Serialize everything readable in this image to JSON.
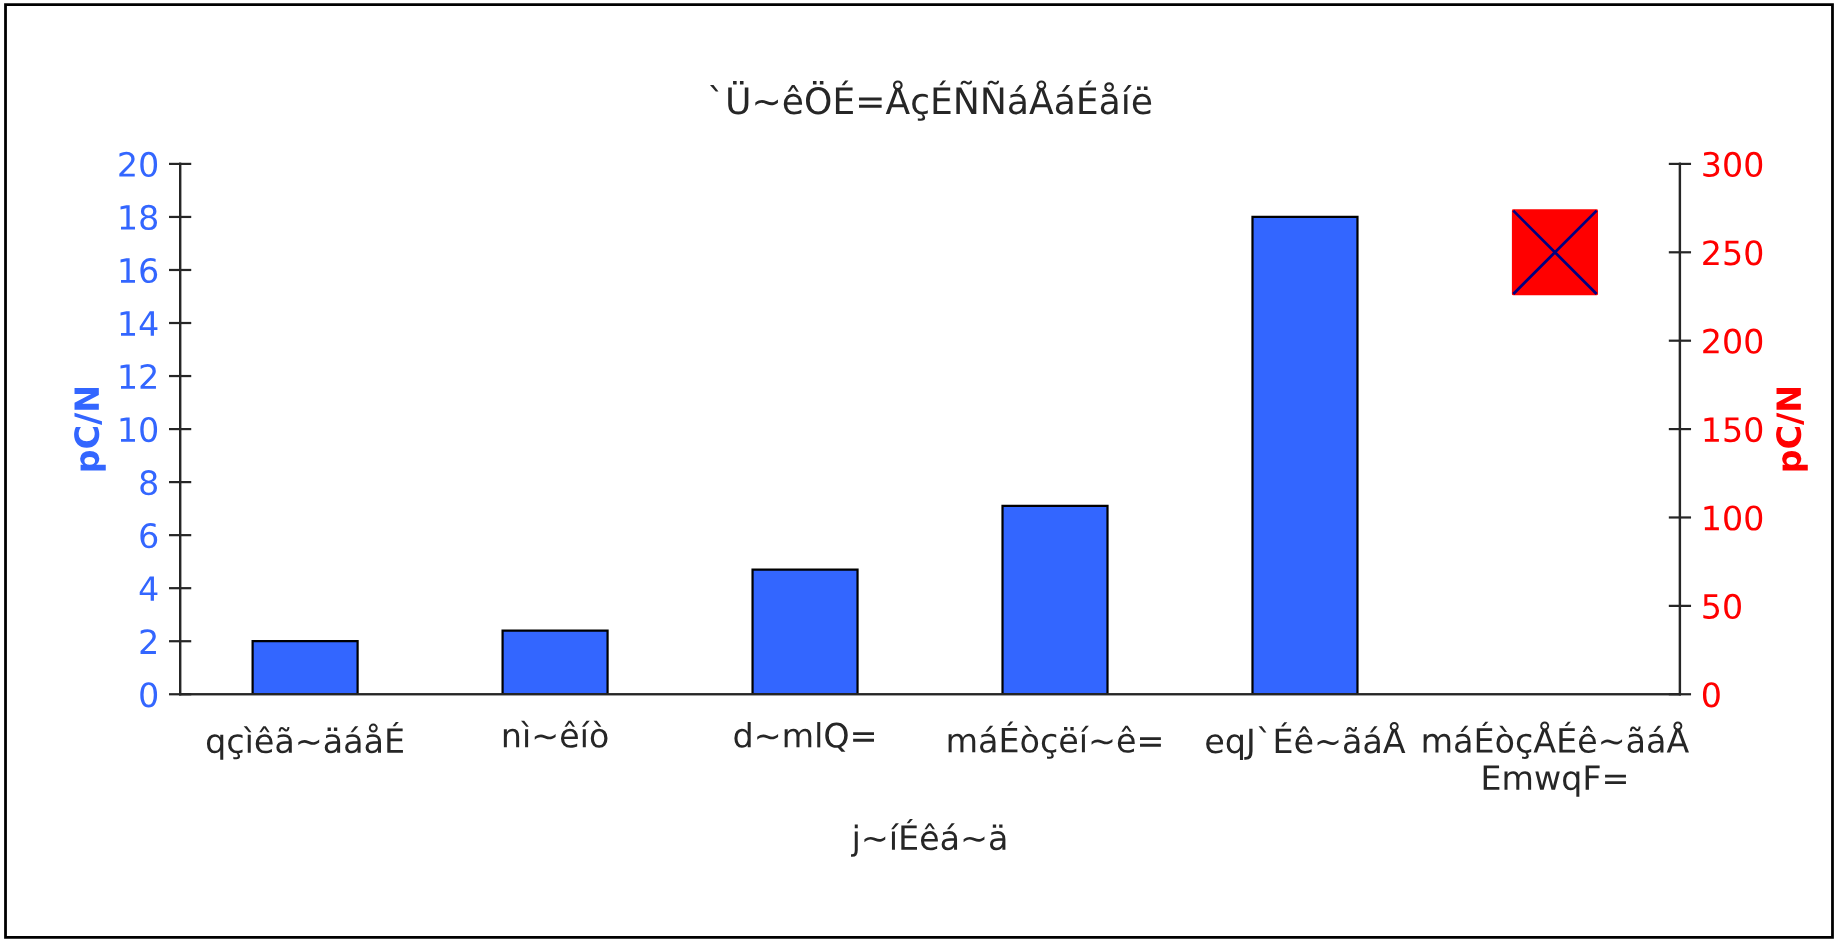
{
  "chart_data": {
    "type": "bar",
    "title": "`Ü~êÖÉ=ÅçÉÑÑáÅáÉåíë",
    "xlabel": "j~íÉêá~ä",
    "ylabel": "pC/N",
    "y2label": "pC/N",
    "categories": [
      "qçìêã~äáåÉ",
      "nì~êíò",
      "d~mlQ=",
      "máÉòçëí~ê=",
      "eqJ`Éê~ãáÅ",
      "máÉòçÅÉê~ãáÅ\nEmwqF="
    ],
    "series": [
      {
        "color": "#3366ff",
        "values": [
          2.0,
          2.4,
          4.7,
          7.1,
          18.0,
          null
        ]
      },
      {
        "type": "scatter",
        "axis": "y2",
        "color": "#ff0000",
        "marker": "square",
        "values": [
          null,
          null,
          null,
          null,
          null,
          250
        ]
      }
    ],
    "ylim": [
      0,
      20
    ],
    "yticks": [
      0,
      2,
      4,
      6,
      8,
      10,
      12,
      14,
      16,
      18,
      20
    ],
    "y2lim": [
      0,
      300
    ],
    "y2ticks": [
      0,
      50,
      100,
      150,
      200,
      250,
      300
    ],
    "grid": false,
    "legend": false
  }
}
